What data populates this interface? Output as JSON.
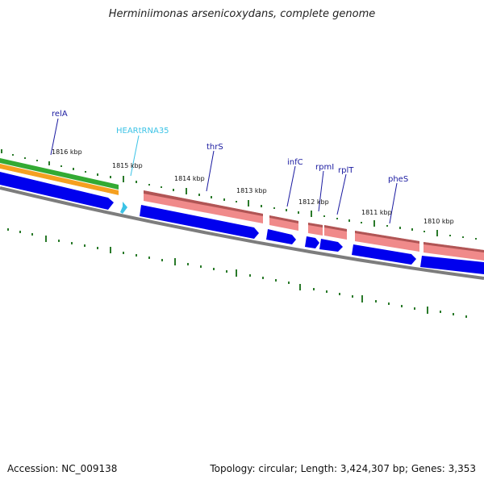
{
  "title": "Herminiimonas arsenicoxydans, complete genome",
  "footer": {
    "accession": "Accession: NC_009138",
    "summary": "Topology: circular; Length: 3,424,307 bp; Genes: 3,353"
  },
  "colors": {
    "backbone": "#7d7d7d",
    "forward_gene": "#f08a8a",
    "reverse_gene": "#0000ee",
    "trna": "#3cc3e6",
    "gc_band": "#33aa33",
    "orange_band": "#f5a020",
    "tick": "#2a7a2a",
    "gene_label": "#1a1aa0"
  },
  "scale_labels": [
    "1816 kbp",
    "1815 kbp",
    "1814 kbp",
    "1813 kbp",
    "1812 kbp",
    "1811 kbp",
    "1810 kbp"
  ],
  "gene_labels": [
    {
      "name": "relA",
      "kind": "gene"
    },
    {
      "name": "HEARtRNA35",
      "kind": "trna"
    },
    {
      "name": "thrS",
      "kind": "gene"
    },
    {
      "name": "infC",
      "kind": "gene"
    },
    {
      "name": "rpmI",
      "kind": "gene"
    },
    {
      "name": "rplT",
      "kind": "gene"
    },
    {
      "name": "pheS",
      "kind": "gene"
    }
  ]
}
